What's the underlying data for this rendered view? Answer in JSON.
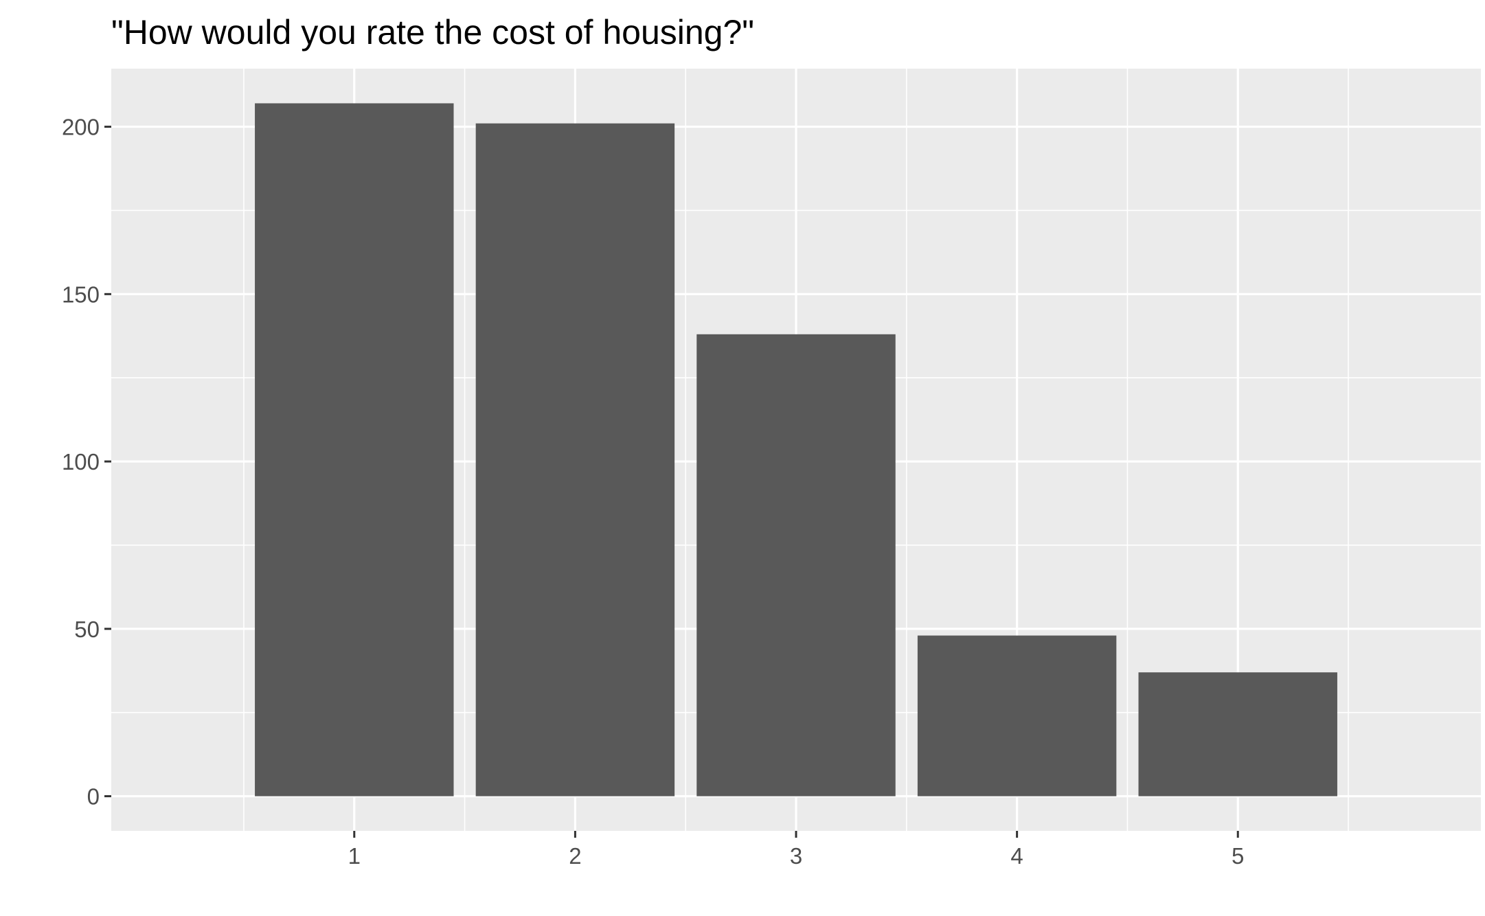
{
  "chart_data": {
    "type": "bar",
    "title": "\"How would you rate the cost of housing?\"",
    "xlabel": "",
    "ylabel": "",
    "categories": [
      "1",
      "2",
      "3",
      "4",
      "5"
    ],
    "values": [
      207,
      201,
      138,
      48,
      37
    ],
    "ylim": [
      -10.35,
      217.35
    ],
    "yticks": [
      0,
      50,
      100,
      150,
      200
    ],
    "grid": true,
    "legend": "none",
    "colors": {
      "bar": "#595959",
      "panel": "#ebebeb",
      "grid": "#ffffff",
      "tick_text": "#4d4d4d",
      "tick_mark": "#333333"
    }
  }
}
